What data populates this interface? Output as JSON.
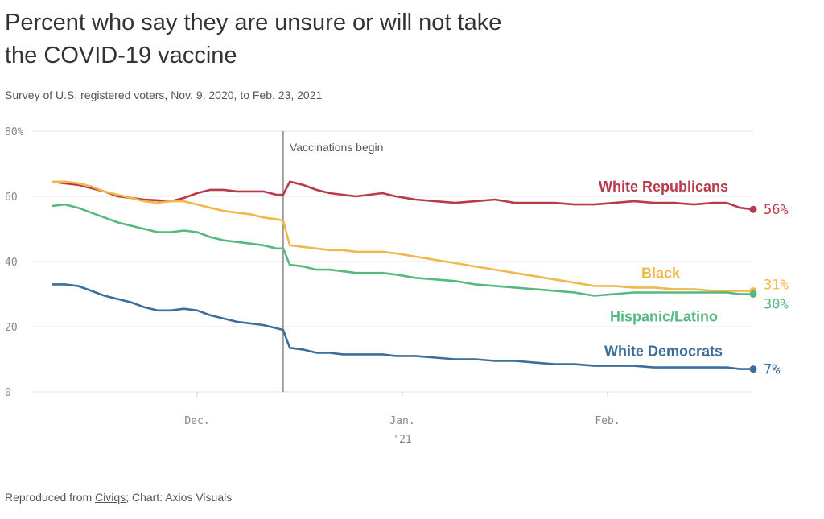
{
  "title": "Percent who say they are unsure or will not take the COVID-19 vaccine",
  "subtitle": "Survey of U.S. registered voters, Nov. 9, 2020, to Feb. 23, 2021",
  "footer": {
    "prefix": "Reproduced from ",
    "link_text": "Civiqs",
    "suffix": "; Chart: Axios Visuals"
  },
  "chart_data": {
    "type": "line",
    "title": "Percent who say they are unsure or will not take the COVID-19 vaccine",
    "subtitle": "Survey of U.S. registered voters, Nov. 9, 2020, to Feb. 23, 2021",
    "xlabel": "",
    "ylabel": "",
    "x_range": [
      "2020-11-09",
      "2021-02-23"
    ],
    "ylim": [
      0,
      80
    ],
    "yticks": [
      {
        "value": 0,
        "label": "0"
      },
      {
        "value": 20,
        "label": "20"
      },
      {
        "value": 40,
        "label": "40"
      },
      {
        "value": 60,
        "label": "60"
      },
      {
        "value": 80,
        "label": "80%"
      }
    ],
    "xticks": [
      {
        "date": "2020-12-01",
        "label": "Dec.",
        "sublabel": ""
      },
      {
        "date": "2021-01-01",
        "label": "Jan.",
        "sublabel": "'21"
      },
      {
        "date": "2021-02-01",
        "label": "Feb.",
        "sublabel": ""
      }
    ],
    "grid": "horizontal",
    "annotation": {
      "date": "2020-12-14",
      "label": "Vaccinations begin"
    },
    "series": [
      {
        "name": "White Republicans",
        "color": "#b83a4b",
        "end_label": "56%",
        "points": [
          [
            "2020-11-09",
            64.5
          ],
          [
            "2020-11-11",
            64
          ],
          [
            "2020-11-13",
            63.5
          ],
          [
            "2020-11-15",
            62.5
          ],
          [
            "2020-11-17",
            61.5
          ],
          [
            "2020-11-19",
            60
          ],
          [
            "2020-11-21",
            59.5
          ],
          [
            "2020-11-23",
            59
          ],
          [
            "2020-11-25",
            58.8
          ],
          [
            "2020-11-27",
            58.5
          ],
          [
            "2020-11-29",
            59.5
          ],
          [
            "2020-12-01",
            61
          ],
          [
            "2020-12-03",
            62
          ],
          [
            "2020-12-05",
            62
          ],
          [
            "2020-12-07",
            61.5
          ],
          [
            "2020-12-09",
            61.5
          ],
          [
            "2020-12-11",
            61.5
          ],
          [
            "2020-12-13",
            60.5
          ],
          [
            "2020-12-14",
            60.5
          ],
          [
            "2020-12-15",
            64.5
          ],
          [
            "2020-12-17",
            63.5
          ],
          [
            "2020-12-19",
            62
          ],
          [
            "2020-12-21",
            61
          ],
          [
            "2020-12-23",
            60.5
          ],
          [
            "2020-12-25",
            60
          ],
          [
            "2020-12-27",
            60.5
          ],
          [
            "2020-12-29",
            61
          ],
          [
            "2020-12-31",
            60
          ],
          [
            "2021-01-03",
            59
          ],
          [
            "2021-01-06",
            58.5
          ],
          [
            "2021-01-09",
            58
          ],
          [
            "2021-01-12",
            58.5
          ],
          [
            "2021-01-15",
            59
          ],
          [
            "2021-01-18",
            58
          ],
          [
            "2021-01-21",
            58
          ],
          [
            "2021-01-24",
            58
          ],
          [
            "2021-01-27",
            57.5
          ],
          [
            "2021-01-30",
            57.5
          ],
          [
            "2021-02-02",
            58
          ],
          [
            "2021-02-05",
            58.5
          ],
          [
            "2021-02-08",
            58
          ],
          [
            "2021-02-11",
            58
          ],
          [
            "2021-02-14",
            57.5
          ],
          [
            "2021-02-17",
            58
          ],
          [
            "2021-02-19",
            58
          ],
          [
            "2021-02-21",
            56.5
          ],
          [
            "2021-02-23",
            56
          ]
        ]
      },
      {
        "name": "Black",
        "color": "#f0b84c",
        "end_label": "31%",
        "points": [
          [
            "2020-11-09",
            64.5
          ],
          [
            "2020-11-11",
            64.5
          ],
          [
            "2020-11-13",
            64
          ],
          [
            "2020-11-15",
            63
          ],
          [
            "2020-11-17",
            61.5
          ],
          [
            "2020-11-19",
            60.5
          ],
          [
            "2020-11-21",
            59.5
          ],
          [
            "2020-11-23",
            58.5
          ],
          [
            "2020-11-25",
            58
          ],
          [
            "2020-11-27",
            58.5
          ],
          [
            "2020-11-29",
            58.5
          ],
          [
            "2020-12-01",
            57.5
          ],
          [
            "2020-12-03",
            56.5
          ],
          [
            "2020-12-05",
            55.5
          ],
          [
            "2020-12-07",
            55
          ],
          [
            "2020-12-09",
            54.5
          ],
          [
            "2020-12-11",
            53.5
          ],
          [
            "2020-12-13",
            53
          ],
          [
            "2020-12-14",
            52.5
          ],
          [
            "2020-12-15",
            45
          ],
          [
            "2020-12-17",
            44.5
          ],
          [
            "2020-12-19",
            44
          ],
          [
            "2020-12-21",
            43.5
          ],
          [
            "2020-12-23",
            43.5
          ],
          [
            "2020-12-25",
            43
          ],
          [
            "2020-12-27",
            43
          ],
          [
            "2020-12-29",
            43
          ],
          [
            "2020-12-31",
            42.5
          ],
          [
            "2021-01-03",
            41.5
          ],
          [
            "2021-01-06",
            40.5
          ],
          [
            "2021-01-09",
            39.5
          ],
          [
            "2021-01-12",
            38.5
          ],
          [
            "2021-01-15",
            37.5
          ],
          [
            "2021-01-18",
            36.5
          ],
          [
            "2021-01-21",
            35.5
          ],
          [
            "2021-01-24",
            34.5
          ],
          [
            "2021-01-27",
            33.5
          ],
          [
            "2021-01-30",
            32.5
          ],
          [
            "2021-02-02",
            32.5
          ],
          [
            "2021-02-05",
            32
          ],
          [
            "2021-02-08",
            32
          ],
          [
            "2021-02-11",
            31.5
          ],
          [
            "2021-02-14",
            31.5
          ],
          [
            "2021-02-17",
            31
          ],
          [
            "2021-02-19",
            31
          ],
          [
            "2021-02-21",
            31
          ],
          [
            "2021-02-23",
            31
          ]
        ]
      },
      {
        "name": "Hispanic/Latino",
        "color": "#56b882",
        "end_label": "30%",
        "points": [
          [
            "2020-11-09",
            57
          ],
          [
            "2020-11-11",
            57.5
          ],
          [
            "2020-11-13",
            56.5
          ],
          [
            "2020-11-15",
            55
          ],
          [
            "2020-11-17",
            53.5
          ],
          [
            "2020-11-19",
            52
          ],
          [
            "2020-11-21",
            51
          ],
          [
            "2020-11-23",
            50
          ],
          [
            "2020-11-25",
            49
          ],
          [
            "2020-11-27",
            49
          ],
          [
            "2020-11-29",
            49.5
          ],
          [
            "2020-12-01",
            49
          ],
          [
            "2020-12-03",
            47.5
          ],
          [
            "2020-12-05",
            46.5
          ],
          [
            "2020-12-07",
            46
          ],
          [
            "2020-12-09",
            45.5
          ],
          [
            "2020-12-11",
            45
          ],
          [
            "2020-12-13",
            44
          ],
          [
            "2020-12-14",
            44
          ],
          [
            "2020-12-15",
            39
          ],
          [
            "2020-12-17",
            38.5
          ],
          [
            "2020-12-19",
            37.5
          ],
          [
            "2020-12-21",
            37.5
          ],
          [
            "2020-12-23",
            37
          ],
          [
            "2020-12-25",
            36.5
          ],
          [
            "2020-12-27",
            36.5
          ],
          [
            "2020-12-29",
            36.5
          ],
          [
            "2020-12-31",
            36
          ],
          [
            "2021-01-03",
            35
          ],
          [
            "2021-01-06",
            34.5
          ],
          [
            "2021-01-09",
            34
          ],
          [
            "2021-01-12",
            33
          ],
          [
            "2021-01-15",
            32.5
          ],
          [
            "2021-01-18",
            32
          ],
          [
            "2021-01-21",
            31.5
          ],
          [
            "2021-01-24",
            31
          ],
          [
            "2021-01-27",
            30.5
          ],
          [
            "2021-01-30",
            29.5
          ],
          [
            "2021-02-02",
            30
          ],
          [
            "2021-02-05",
            30.5
          ],
          [
            "2021-02-08",
            30.5
          ],
          [
            "2021-02-11",
            30.5
          ],
          [
            "2021-02-14",
            30.5
          ],
          [
            "2021-02-17",
            30.5
          ],
          [
            "2021-02-19",
            30.5
          ],
          [
            "2021-02-21",
            30
          ],
          [
            "2021-02-23",
            30
          ]
        ]
      },
      {
        "name": "White Democrats",
        "color": "#3d6e99",
        "end_label": "7%",
        "points": [
          [
            "2020-11-09",
            33
          ],
          [
            "2020-11-11",
            33
          ],
          [
            "2020-11-13",
            32.5
          ],
          [
            "2020-11-15",
            31
          ],
          [
            "2020-11-17",
            29.5
          ],
          [
            "2020-11-19",
            28.5
          ],
          [
            "2020-11-21",
            27.5
          ],
          [
            "2020-11-23",
            26
          ],
          [
            "2020-11-25",
            25
          ],
          [
            "2020-11-27",
            25
          ],
          [
            "2020-11-29",
            25.5
          ],
          [
            "2020-12-01",
            25
          ],
          [
            "2020-12-03",
            23.5
          ],
          [
            "2020-12-05",
            22.5
          ],
          [
            "2020-12-07",
            21.5
          ],
          [
            "2020-12-09",
            21
          ],
          [
            "2020-12-11",
            20.5
          ],
          [
            "2020-12-13",
            19.5
          ],
          [
            "2020-12-14",
            19
          ],
          [
            "2020-12-15",
            13.5
          ],
          [
            "2020-12-17",
            13
          ],
          [
            "2020-12-19",
            12
          ],
          [
            "2020-12-21",
            12
          ],
          [
            "2020-12-23",
            11.5
          ],
          [
            "2020-12-25",
            11.5
          ],
          [
            "2020-12-27",
            11.5
          ],
          [
            "2020-12-29",
            11.5
          ],
          [
            "2020-12-31",
            11
          ],
          [
            "2021-01-03",
            11
          ],
          [
            "2021-01-06",
            10.5
          ],
          [
            "2021-01-09",
            10
          ],
          [
            "2021-01-12",
            10
          ],
          [
            "2021-01-15",
            9.5
          ],
          [
            "2021-01-18",
            9.5
          ],
          [
            "2021-01-21",
            9
          ],
          [
            "2021-01-24",
            8.5
          ],
          [
            "2021-01-27",
            8.5
          ],
          [
            "2021-01-30",
            8
          ],
          [
            "2021-02-02",
            8
          ],
          [
            "2021-02-05",
            8
          ],
          [
            "2021-02-08",
            7.5
          ],
          [
            "2021-02-11",
            7.5
          ],
          [
            "2021-02-14",
            7.5
          ],
          [
            "2021-02-17",
            7.5
          ],
          [
            "2021-02-19",
            7.5
          ],
          [
            "2021-02-21",
            7
          ],
          [
            "2021-02-23",
            7
          ]
        ]
      }
    ]
  }
}
